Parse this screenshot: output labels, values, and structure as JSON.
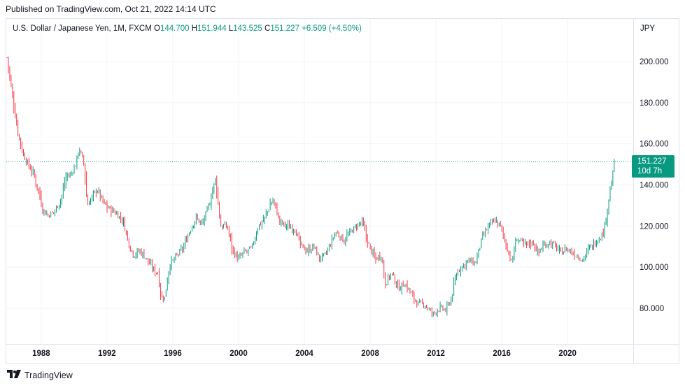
{
  "publish_line": "Published on TradingView.com, Oct 21, 2022 14:14 UTC",
  "legend": {
    "symbol": "U.S. Dollar / Japanese Yen, 1M, FXCM",
    "o_label": "O",
    "o_value": "144.700",
    "h_label": "H",
    "h_value": "151.944",
    "l_label": "L",
    "l_value": "143.525",
    "c_label": "C",
    "c_value": "151.227",
    "change": "+6.509 (+4.50%)"
  },
  "currency": "JPY",
  "price_badge": {
    "price": "151.227",
    "countdown": "10d 7h"
  },
  "footer": {
    "brand": "TradingView"
  },
  "colors": {
    "up": "#089981",
    "down": "#f23645",
    "grid": "#f0f3fa",
    "axis_text": "#131722",
    "last_line": "#089981"
  },
  "chart_data": {
    "type": "candlestick",
    "interval": "1M",
    "y_ticks": [
      "80.000",
      "100.000",
      "120.000",
      "140.000",
      "160.000",
      "180.000",
      "200.000"
    ],
    "x_ticks": [
      "1988",
      "1992",
      "1996",
      "2000",
      "2004",
      "2008",
      "2012",
      "2016",
      "2020"
    ],
    "ylim": [
      65,
      215
    ],
    "xlim": [
      1985.9,
      2022.9
    ],
    "last_price": 151.227,
    "anchors": [
      [
        1985.92,
        202
      ],
      [
        1986.3,
        180
      ],
      [
        1986.6,
        165
      ],
      [
        1986.9,
        155
      ],
      [
        1987.2,
        150
      ],
      [
        1987.5,
        146
      ],
      [
        1987.9,
        135
      ],
      [
        1988.1,
        128
      ],
      [
        1988.4,
        125
      ],
      [
        1988.8,
        127
      ],
      [
        1989.2,
        133
      ],
      [
        1989.5,
        144
      ],
      [
        1989.8,
        145
      ],
      [
        1990.1,
        150
      ],
      [
        1990.3,
        158
      ],
      [
        1990.6,
        150
      ],
      [
        1990.8,
        130
      ],
      [
        1991.0,
        133
      ],
      [
        1991.4,
        138
      ],
      [
        1991.8,
        131
      ],
      [
        1992.2,
        128
      ],
      [
        1992.6,
        126
      ],
      [
        1993.0,
        122
      ],
      [
        1993.3,
        112
      ],
      [
        1993.6,
        106
      ],
      [
        1994.0,
        108
      ],
      [
        1994.4,
        104
      ],
      [
        1994.8,
        99
      ],
      [
        1995.1,
        97
      ],
      [
        1995.3,
        85
      ],
      [
        1995.5,
        85
      ],
      [
        1995.8,
        101
      ],
      [
        1996.2,
        105
      ],
      [
        1996.6,
        109
      ],
      [
        1997.0,
        117
      ],
      [
        1997.4,
        124
      ],
      [
        1997.8,
        121
      ],
      [
        1998.2,
        130
      ],
      [
        1998.6,
        143
      ],
      [
        1998.9,
        120
      ],
      [
        1999.3,
        120
      ],
      [
        1999.7,
        107
      ],
      [
        2000.0,
        104
      ],
      [
        2000.3,
        107
      ],
      [
        2000.8,
        109
      ],
      [
        2001.2,
        120
      ],
      [
        2001.6,
        124
      ],
      [
        2001.9,
        130
      ],
      [
        2002.1,
        133
      ],
      [
        2002.5,
        122
      ],
      [
        2002.9,
        120
      ],
      [
        2003.4,
        119
      ],
      [
        2003.8,
        110
      ],
      [
        2004.2,
        108
      ],
      [
        2004.6,
        110
      ],
      [
        2004.9,
        104
      ],
      [
        2005.3,
        106
      ],
      [
        2005.9,
        117
      ],
      [
        2006.4,
        113
      ],
      [
        2006.9,
        118
      ],
      [
        2007.5,
        122
      ],
      [
        2007.9,
        111
      ],
      [
        2008.3,
        104
      ],
      [
        2008.7,
        106
      ],
      [
        2008.9,
        92
      ],
      [
        2009.3,
        97
      ],
      [
        2009.7,
        90
      ],
      [
        2010.1,
        92
      ],
      [
        2010.5,
        87
      ],
      [
        2010.9,
        82
      ],
      [
        2011.3,
        82
      ],
      [
        2011.8,
        77
      ],
      [
        2012.2,
        80
      ],
      [
        2012.6,
        79
      ],
      [
        2012.9,
        84
      ],
      [
        2013.3,
        98
      ],
      [
        2013.9,
        103
      ],
      [
        2014.4,
        102
      ],
      [
        2014.8,
        114
      ],
      [
        2015.2,
        120
      ],
      [
        2015.6,
        123
      ],
      [
        2015.9,
        120
      ],
      [
        2016.3,
        110
      ],
      [
        2016.6,
        102
      ],
      [
        2016.9,
        114
      ],
      [
        2017.4,
        111
      ],
      [
        2017.9,
        112
      ],
      [
        2018.2,
        107
      ],
      [
        2018.6,
        111
      ],
      [
        2018.9,
        112
      ],
      [
        2019.3,
        110
      ],
      [
        2019.6,
        107
      ],
      [
        2019.9,
        109
      ],
      [
        2020.3,
        107
      ],
      [
        2020.7,
        105
      ],
      [
        2020.9,
        103.5
      ],
      [
        2021.3,
        109
      ],
      [
        2021.9,
        114
      ],
      [
        2022.2,
        117
      ],
      [
        2022.4,
        128
      ],
      [
        2022.6,
        138
      ],
      [
        2022.75,
        144.7
      ],
      [
        2022.8,
        151.2
      ]
    ]
  }
}
